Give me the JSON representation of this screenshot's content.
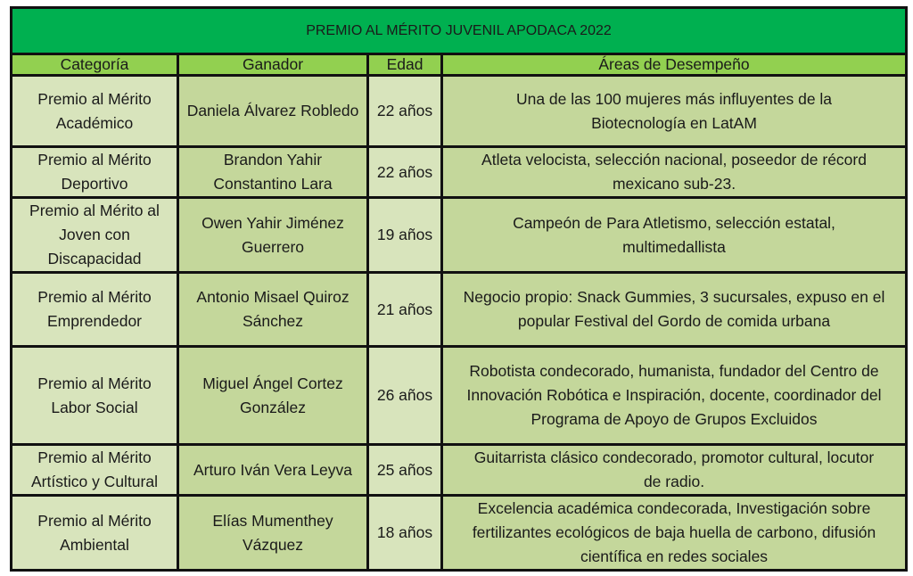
{
  "title": "PREMIO AL MÉRITO JUVENIL APODACA 2022",
  "headers": [
    "Categoría",
    "Ganador",
    "Edad",
    "Áreas de Desempeño"
  ],
  "rows": [
    {
      "category": "Premio al Mérito Académico",
      "winner": "Daniela Álvarez Robledo",
      "age": "22 años",
      "areas": "Una de las 100 mujeres más influyentes de la Biotecnología en LatAM"
    },
    {
      "category": "Premio al Mérito Deportivo",
      "winner": "Brandon Yahir Constantino Lara",
      "age": "22 años",
      "areas": "Atleta velocista, selección nacional, poseedor de récord mexicano sub-23."
    },
    {
      "category": "Premio al Mérito al Joven con Discapacidad",
      "winner": "Owen Yahir Jiménez Guerrero",
      "age": "19 años",
      "areas": "Campeón de Para Atletismo, selección estatal, multimedallista"
    },
    {
      "category": "Premio al Mérito Emprendedor",
      "winner": "Antonio Misael Quiroz Sánchez",
      "age": "21 años",
      "areas": "Negocio propio: Snack Gummies, 3 sucursales, expuso en el popular Festival del Gordo de comida urbana"
    },
    {
      "category": "Premio al Mérito Labor Social",
      "winner": "Miguel Ángel Cortez González",
      "age": "26 años",
      "areas": "Robotista condecorado, humanista, fundador del Centro de Innovación Robótica e Inspiración, docente, coordinador del Programa de Apoyo de Grupos Excluidos"
    },
    {
      "category": "Premio al Mérito Artístico y Cultural",
      "winner": "Arturo Iván Vera Leyva",
      "age": "25 años",
      "areas": "Guitarrista clásico condecorado, promotor cultural, locutor de radio."
    },
    {
      "category": "Premio al Mérito Ambiental",
      "winner": "Elías Mumenthey Vázquez",
      "age": "18 años",
      "areas": "Excelencia académica condecorada, Investigación sobre fertilizantes ecológicos de baja huella de carbono, difusión científica en redes sociales"
    }
  ],
  "colors": {
    "title_bg": "#00b050",
    "header_bg": "#92d050",
    "light_cell": "#d8e4bc",
    "dark_cell": "#c4d79b"
  }
}
